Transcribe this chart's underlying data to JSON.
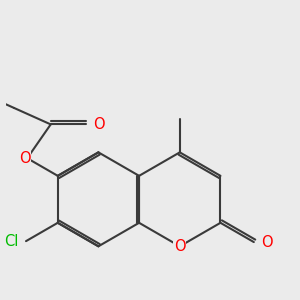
{
  "bg_color": "#ebebeb",
  "bond_color": "#3a3a3a",
  "bond_width": 1.5,
  "dbo": 0.055,
  "atom_colors": {
    "O": "#ff0000",
    "Cl": "#00bb00"
  },
  "font_size": 10.5
}
